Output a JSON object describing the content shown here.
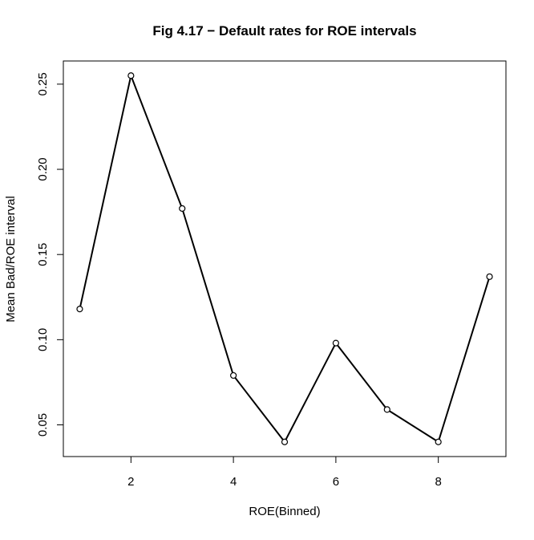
{
  "chart_data": {
    "type": "line",
    "title": "Fig 4.17 − Default rates for ROE intervals",
    "xlabel": "ROE(Binned)",
    "ylabel": "Mean Bad/ROE interval",
    "x": [
      1,
      2,
      3,
      4,
      5,
      6,
      7,
      8,
      9
    ],
    "series": [
      {
        "values": [
          0.118,
          0.255,
          0.177,
          0.079,
          0.04,
          0.098,
          0.059,
          0.04,
          0.137
        ],
        "color": "#000000",
        "marker": "open-circle"
      }
    ],
    "x_ticks": [
      2,
      4,
      6,
      8
    ],
    "x_tick_labels": [
      "2",
      "4",
      "6",
      "8"
    ],
    "y_ticks": [
      0.05,
      0.1,
      0.15,
      0.2,
      0.25
    ],
    "y_tick_labels": [
      "0.05",
      "0.10",
      "0.15",
      "0.20",
      "0.25"
    ],
    "xlim": [
      0.68,
      9.32
    ],
    "ylim": [
      0.0314,
      0.2636
    ],
    "grid": false,
    "legend": "none"
  }
}
